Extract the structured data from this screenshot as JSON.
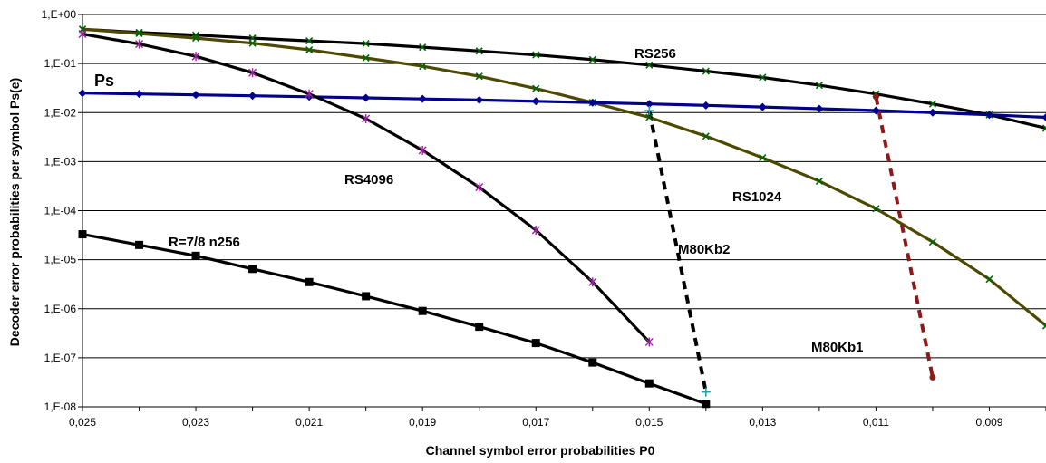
{
  "chart_data": {
    "type": "line",
    "title": "",
    "xlabel": "Channel symbol error probabilities P0",
    "ylabel": "Decoder error probabilities per symbol Ps(e)",
    "x_reversed": true,
    "xlim": [
      0.025,
      0.008
    ],
    "x_ticks": [
      0.025,
      0.023,
      0.021,
      0.019,
      0.017,
      0.015,
      0.013,
      0.011,
      0.009
    ],
    "x_tick_labels": [
      "0,025",
      "0,023",
      "0,021",
      "0,019",
      "0,017",
      "0,015",
      "0,013",
      "0,011",
      "0,009"
    ],
    "y_scale": "log",
    "ylim": [
      1e-08,
      1
    ],
    "y_ticks": [
      1,
      0.1,
      0.01,
      0.001,
      0.0001,
      1e-05,
      1e-06,
      1e-07,
      1e-08
    ],
    "y_tick_labels": [
      "1,E+00",
      "1,E-01",
      "1,E-02",
      "1,E-03",
      "1,E-04",
      "1,E-05",
      "1,E-06",
      "1,E-07",
      "1,E-08"
    ],
    "grid": "horizontal",
    "series": [
      {
        "name": "RS256",
        "color": "#000000",
        "marker": "cross-x",
        "marker_color": "#006400",
        "line_style": "solid",
        "points": [
          [
            0.025,
            0.5
          ],
          [
            0.024,
            0.43
          ],
          [
            0.023,
            0.38
          ],
          [
            0.022,
            0.33
          ],
          [
            0.021,
            0.29
          ],
          [
            0.02,
            0.255
          ],
          [
            0.019,
            0.215
          ],
          [
            0.018,
            0.18
          ],
          [
            0.017,
            0.15
          ],
          [
            0.016,
            0.12
          ],
          [
            0.015,
            0.093
          ],
          [
            0.014,
            0.07
          ],
          [
            0.013,
            0.052
          ],
          [
            0.012,
            0.036
          ],
          [
            0.011,
            0.024
          ],
          [
            0.01,
            0.015
          ],
          [
            0.009,
            0.009
          ],
          [
            0.008,
            0.0048
          ]
        ]
      },
      {
        "name": "RS1024",
        "color": "#4d4a00",
        "marker": "cross-x",
        "marker_color": "#006400",
        "line_style": "solid",
        "points": [
          [
            0.025,
            0.5
          ],
          [
            0.024,
            0.41
          ],
          [
            0.023,
            0.33
          ],
          [
            0.022,
            0.26
          ],
          [
            0.021,
            0.19
          ],
          [
            0.02,
            0.13
          ],
          [
            0.019,
            0.088
          ],
          [
            0.018,
            0.055
          ],
          [
            0.017,
            0.031
          ],
          [
            0.016,
            0.016
          ],
          [
            0.015,
            0.008
          ],
          [
            0.014,
            0.0033
          ],
          [
            0.013,
            0.0012
          ],
          [
            0.012,
            0.0004
          ],
          [
            0.011,
            0.00011
          ],
          [
            0.01,
            2.3e-05
          ],
          [
            0.009,
            4e-06
          ],
          [
            0.008,
            4.5e-07
          ]
        ]
      },
      {
        "name": "Ps",
        "color": "#00008b",
        "marker": "diamond",
        "marker_color": "#00008b",
        "line_style": "solid",
        "points": [
          [
            0.025,
            0.025
          ],
          [
            0.024,
            0.024
          ],
          [
            0.023,
            0.023
          ],
          [
            0.022,
            0.022
          ],
          [
            0.021,
            0.021
          ],
          [
            0.02,
            0.02
          ],
          [
            0.019,
            0.019
          ],
          [
            0.018,
            0.018
          ],
          [
            0.017,
            0.017
          ],
          [
            0.016,
            0.016
          ],
          [
            0.015,
            0.015
          ],
          [
            0.014,
            0.014
          ],
          [
            0.013,
            0.013
          ],
          [
            0.012,
            0.012
          ],
          [
            0.011,
            0.011
          ],
          [
            0.01,
            0.01
          ],
          [
            0.009,
            0.009
          ],
          [
            0.008,
            0.008
          ]
        ]
      },
      {
        "name": "RS4096",
        "color": "#000000",
        "marker": "asterisk",
        "marker_color": "#9b1fa0",
        "line_style": "solid",
        "points": [
          [
            0.025,
            0.4
          ],
          [
            0.024,
            0.25
          ],
          [
            0.023,
            0.14
          ],
          [
            0.022,
            0.065
          ],
          [
            0.021,
            0.024
          ],
          [
            0.02,
            0.0075
          ],
          [
            0.019,
            0.0017
          ],
          [
            0.018,
            0.0003
          ],
          [
            0.017,
            4e-05
          ],
          [
            0.016,
            3.5e-06
          ],
          [
            0.015,
            2.1e-07
          ]
        ]
      },
      {
        "name": "R=7/8  n256",
        "color": "#000000",
        "marker": "square",
        "marker_color": "#000000",
        "line_style": "solid",
        "points": [
          [
            0.025,
            3.3e-05
          ],
          [
            0.024,
            2e-05
          ],
          [
            0.023,
            1.2e-05
          ],
          [
            0.022,
            6.5e-06
          ],
          [
            0.021,
            3.5e-06
          ],
          [
            0.02,
            1.8e-06
          ],
          [
            0.019,
            9e-07
          ],
          [
            0.018,
            4.3e-07
          ],
          [
            0.017,
            2e-07
          ],
          [
            0.016,
            8e-08
          ],
          [
            0.015,
            3e-08
          ],
          [
            0.014,
            1.15e-08
          ]
        ]
      },
      {
        "name": "M80Kb2",
        "color": "#000000",
        "marker": "plus",
        "marker_color": "#20a0a8",
        "line_style": "dashed",
        "points": [
          [
            0.015,
            0.011
          ],
          [
            0.014,
            2e-08
          ]
        ]
      },
      {
        "name": "M80Kb1",
        "color": "#8b1a1a",
        "marker": "dot",
        "marker_color": "#8b1a1a",
        "line_style": "dashed",
        "points": [
          [
            0.011,
            0.021
          ],
          [
            0.01,
            4e-08
          ]
        ]
      }
    ]
  }
}
